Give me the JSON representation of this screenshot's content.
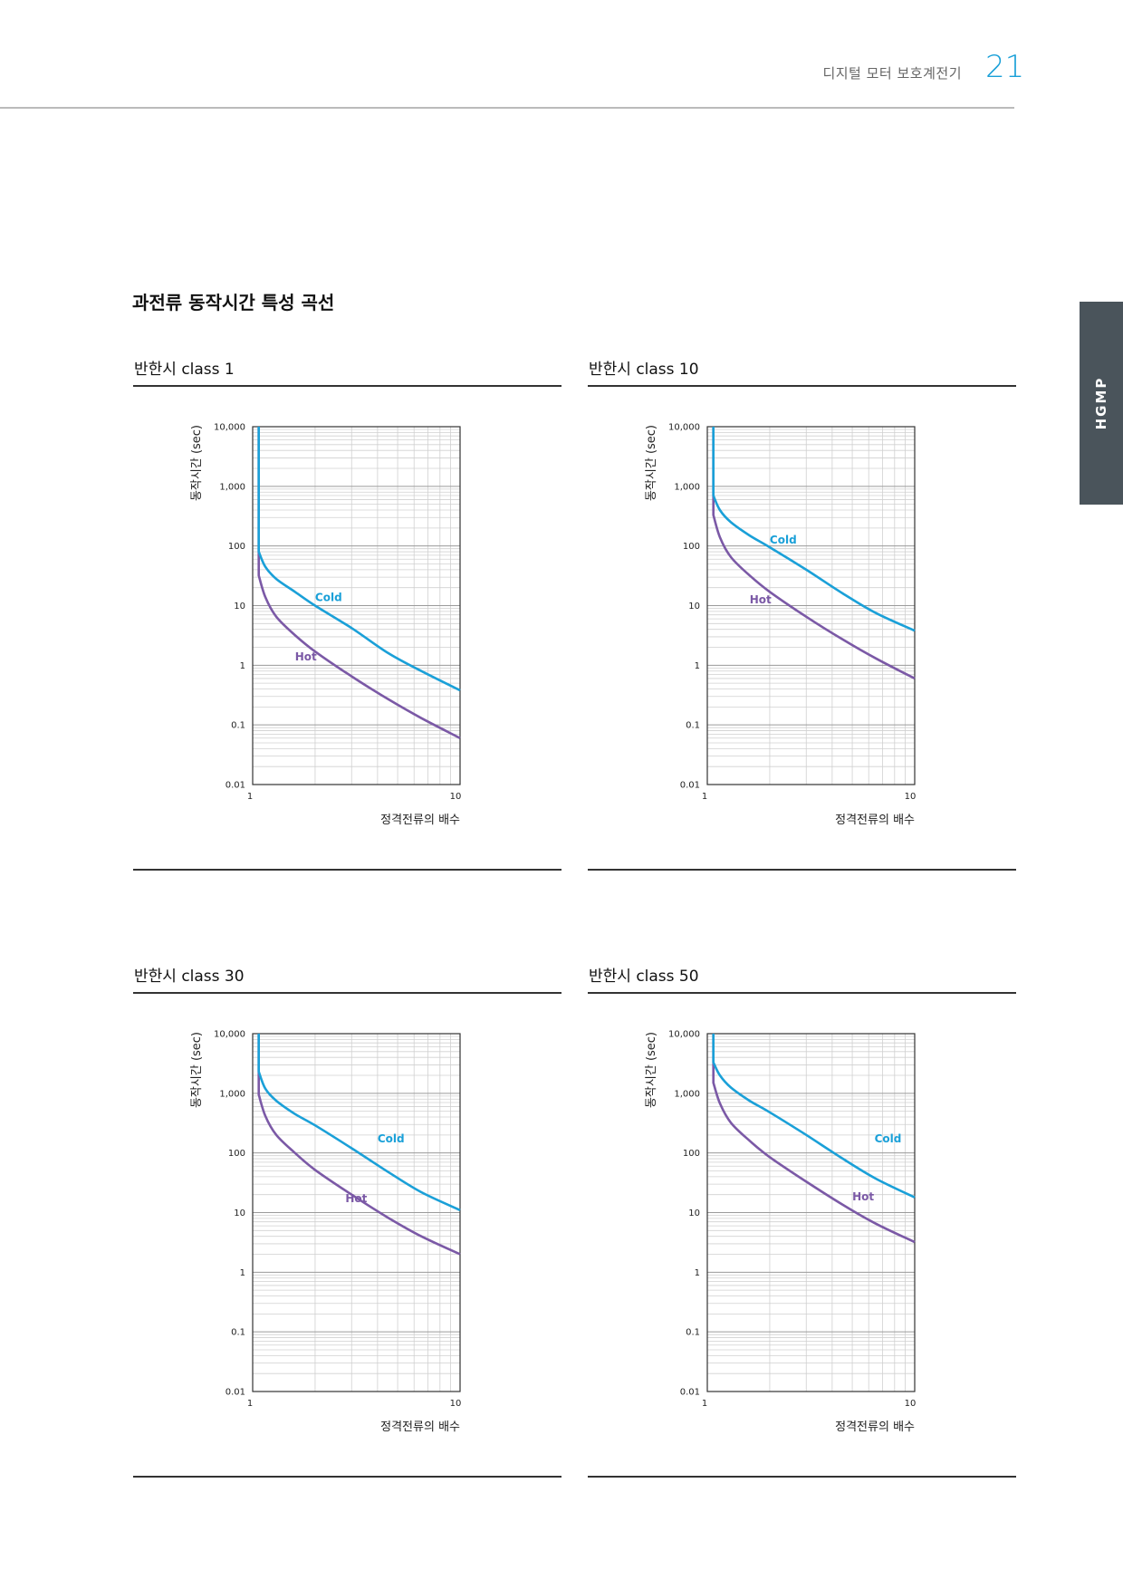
{
  "header": {
    "doc_title": "디지털 모터 보호계전기",
    "page_number": "21"
  },
  "side_tab": {
    "label": "HGMP"
  },
  "section": {
    "title": "과전류 동작시간 특성 곡선"
  },
  "colors": {
    "cold": "#1aa0d8",
    "hot": "#7b59a6",
    "accent": "#1aa0d8",
    "tab_bg": "#4a545b"
  },
  "chart_data": [
    {
      "type": "line",
      "title": "반한시 class 1",
      "xlabel": "정격전류의 배수",
      "ylabel": "동작시간 (sec)",
      "x_scale": "log",
      "y_scale": "log",
      "xlim": [
        1,
        10
      ],
      "ylim": [
        0.01,
        10000
      ],
      "x_ticks": [
        "1",
        "10"
      ],
      "y_ticks": [
        "0.01",
        "0.1",
        "1",
        "10",
        "100",
        "1,000",
        "10,000"
      ],
      "grid": true,
      "series": [
        {
          "name": "Cold",
          "x": [
            1.07,
            1.07,
            1.15,
            1.3,
            1.6,
            2.0,
            3.0,
            4.5,
            6.5,
            10
          ],
          "y": [
            10000,
            80,
            45,
            28,
            17,
            10,
            4.2,
            1.6,
            0.8,
            0.38
          ],
          "label_at": [
            2.0,
            12
          ]
        },
        {
          "name": "Hot",
          "x": [
            1.07,
            1.07,
            1.15,
            1.3,
            1.6,
            2.0,
            3.0,
            4.5,
            6.5,
            10
          ],
          "y": [
            10000,
            32,
            14,
            6.5,
            3.2,
            1.7,
            0.65,
            0.27,
            0.13,
            0.06
          ],
          "label_at": [
            1.6,
            1.2
          ]
        }
      ]
    },
    {
      "type": "line",
      "title": "반한시 class 10",
      "xlabel": "정격전류의 배수",
      "ylabel": "동작시간 (sec)",
      "x_scale": "log",
      "y_scale": "log",
      "xlim": [
        1,
        10
      ],
      "ylim": [
        0.01,
        10000
      ],
      "x_ticks": [
        "1",
        "10"
      ],
      "y_ticks": [
        "0.01",
        "0.1",
        "1",
        "10",
        "100",
        "1,000",
        "10,000"
      ],
      "grid": true,
      "series": [
        {
          "name": "Cold",
          "x": [
            1.07,
            1.07,
            1.15,
            1.3,
            1.6,
            2.0,
            3.0,
            4.5,
            6.5,
            10
          ],
          "y": [
            10000,
            700,
            400,
            250,
            150,
            95,
            40,
            16,
            7.5,
            3.8
          ],
          "label_at": [
            2.0,
            110
          ]
        },
        {
          "name": "Hot",
          "x": [
            1.07,
            1.07,
            1.15,
            1.3,
            1.6,
            2.0,
            3.0,
            4.5,
            6.5,
            10
          ],
          "y": [
            10000,
            330,
            140,
            65,
            32,
            17,
            6.5,
            2.7,
            1.3,
            0.6
          ],
          "label_at": [
            1.6,
            11
          ]
        }
      ]
    },
    {
      "type": "line",
      "title": "반한시 class 30",
      "xlabel": "정격전류의 배수",
      "ylabel": "동작시간 (sec)",
      "x_scale": "log",
      "y_scale": "log",
      "xlim": [
        1,
        10
      ],
      "ylim": [
        0.01,
        10000
      ],
      "x_ticks": [
        "1",
        "10"
      ],
      "y_ticks": [
        "0.01",
        "0.1",
        "1",
        "10",
        "100",
        "1,000",
        "10,000"
      ],
      "grid": true,
      "series": [
        {
          "name": "Cold",
          "x": [
            1.07,
            1.07,
            1.15,
            1.3,
            1.6,
            2.0,
            3.0,
            4.5,
            6.5,
            10
          ],
          "y": [
            10000,
            2300,
            1200,
            750,
            450,
            290,
            120,
            48,
            22,
            11
          ],
          "label_at": [
            4.0,
            150
          ]
        },
        {
          "name": "Hot",
          "x": [
            1.07,
            1.07,
            1.15,
            1.3,
            1.6,
            2.0,
            3.0,
            4.5,
            6.5,
            10
          ],
          "y": [
            10000,
            950,
            420,
            200,
            100,
            52,
            20,
            8.2,
            4,
            2
          ],
          "label_at": [
            2.8,
            15
          ]
        }
      ]
    },
    {
      "type": "line",
      "title": "반한시 class 50",
      "xlabel": "정격전류의 배수",
      "ylabel": "동작시간 (sec)",
      "x_scale": "log",
      "y_scale": "log",
      "xlim": [
        1,
        10
      ],
      "ylim": [
        0.01,
        10000
      ],
      "x_ticks": [
        "1",
        "10"
      ],
      "y_ticks": [
        "0.01",
        "0.1",
        "1",
        "10",
        "100",
        "1,000",
        "10,000"
      ],
      "grid": true,
      "series": [
        {
          "name": "Cold",
          "x": [
            1.07,
            1.07,
            1.15,
            1.3,
            1.6,
            2.0,
            3.0,
            4.5,
            6.5,
            10
          ],
          "y": [
            10000,
            3300,
            2000,
            1250,
            750,
            480,
            200,
            80,
            37,
            18
          ],
          "label_at": [
            6.4,
            150
          ]
        },
        {
          "name": "Hot",
          "x": [
            1.07,
            1.07,
            1.15,
            1.3,
            1.6,
            2.0,
            3.0,
            4.5,
            6.5,
            10
          ],
          "y": [
            10000,
            1500,
            680,
            320,
            160,
            85,
            33,
            13.5,
            6.5,
            3.2
          ],
          "label_at": [
            5.0,
            16
          ]
        }
      ]
    }
  ]
}
